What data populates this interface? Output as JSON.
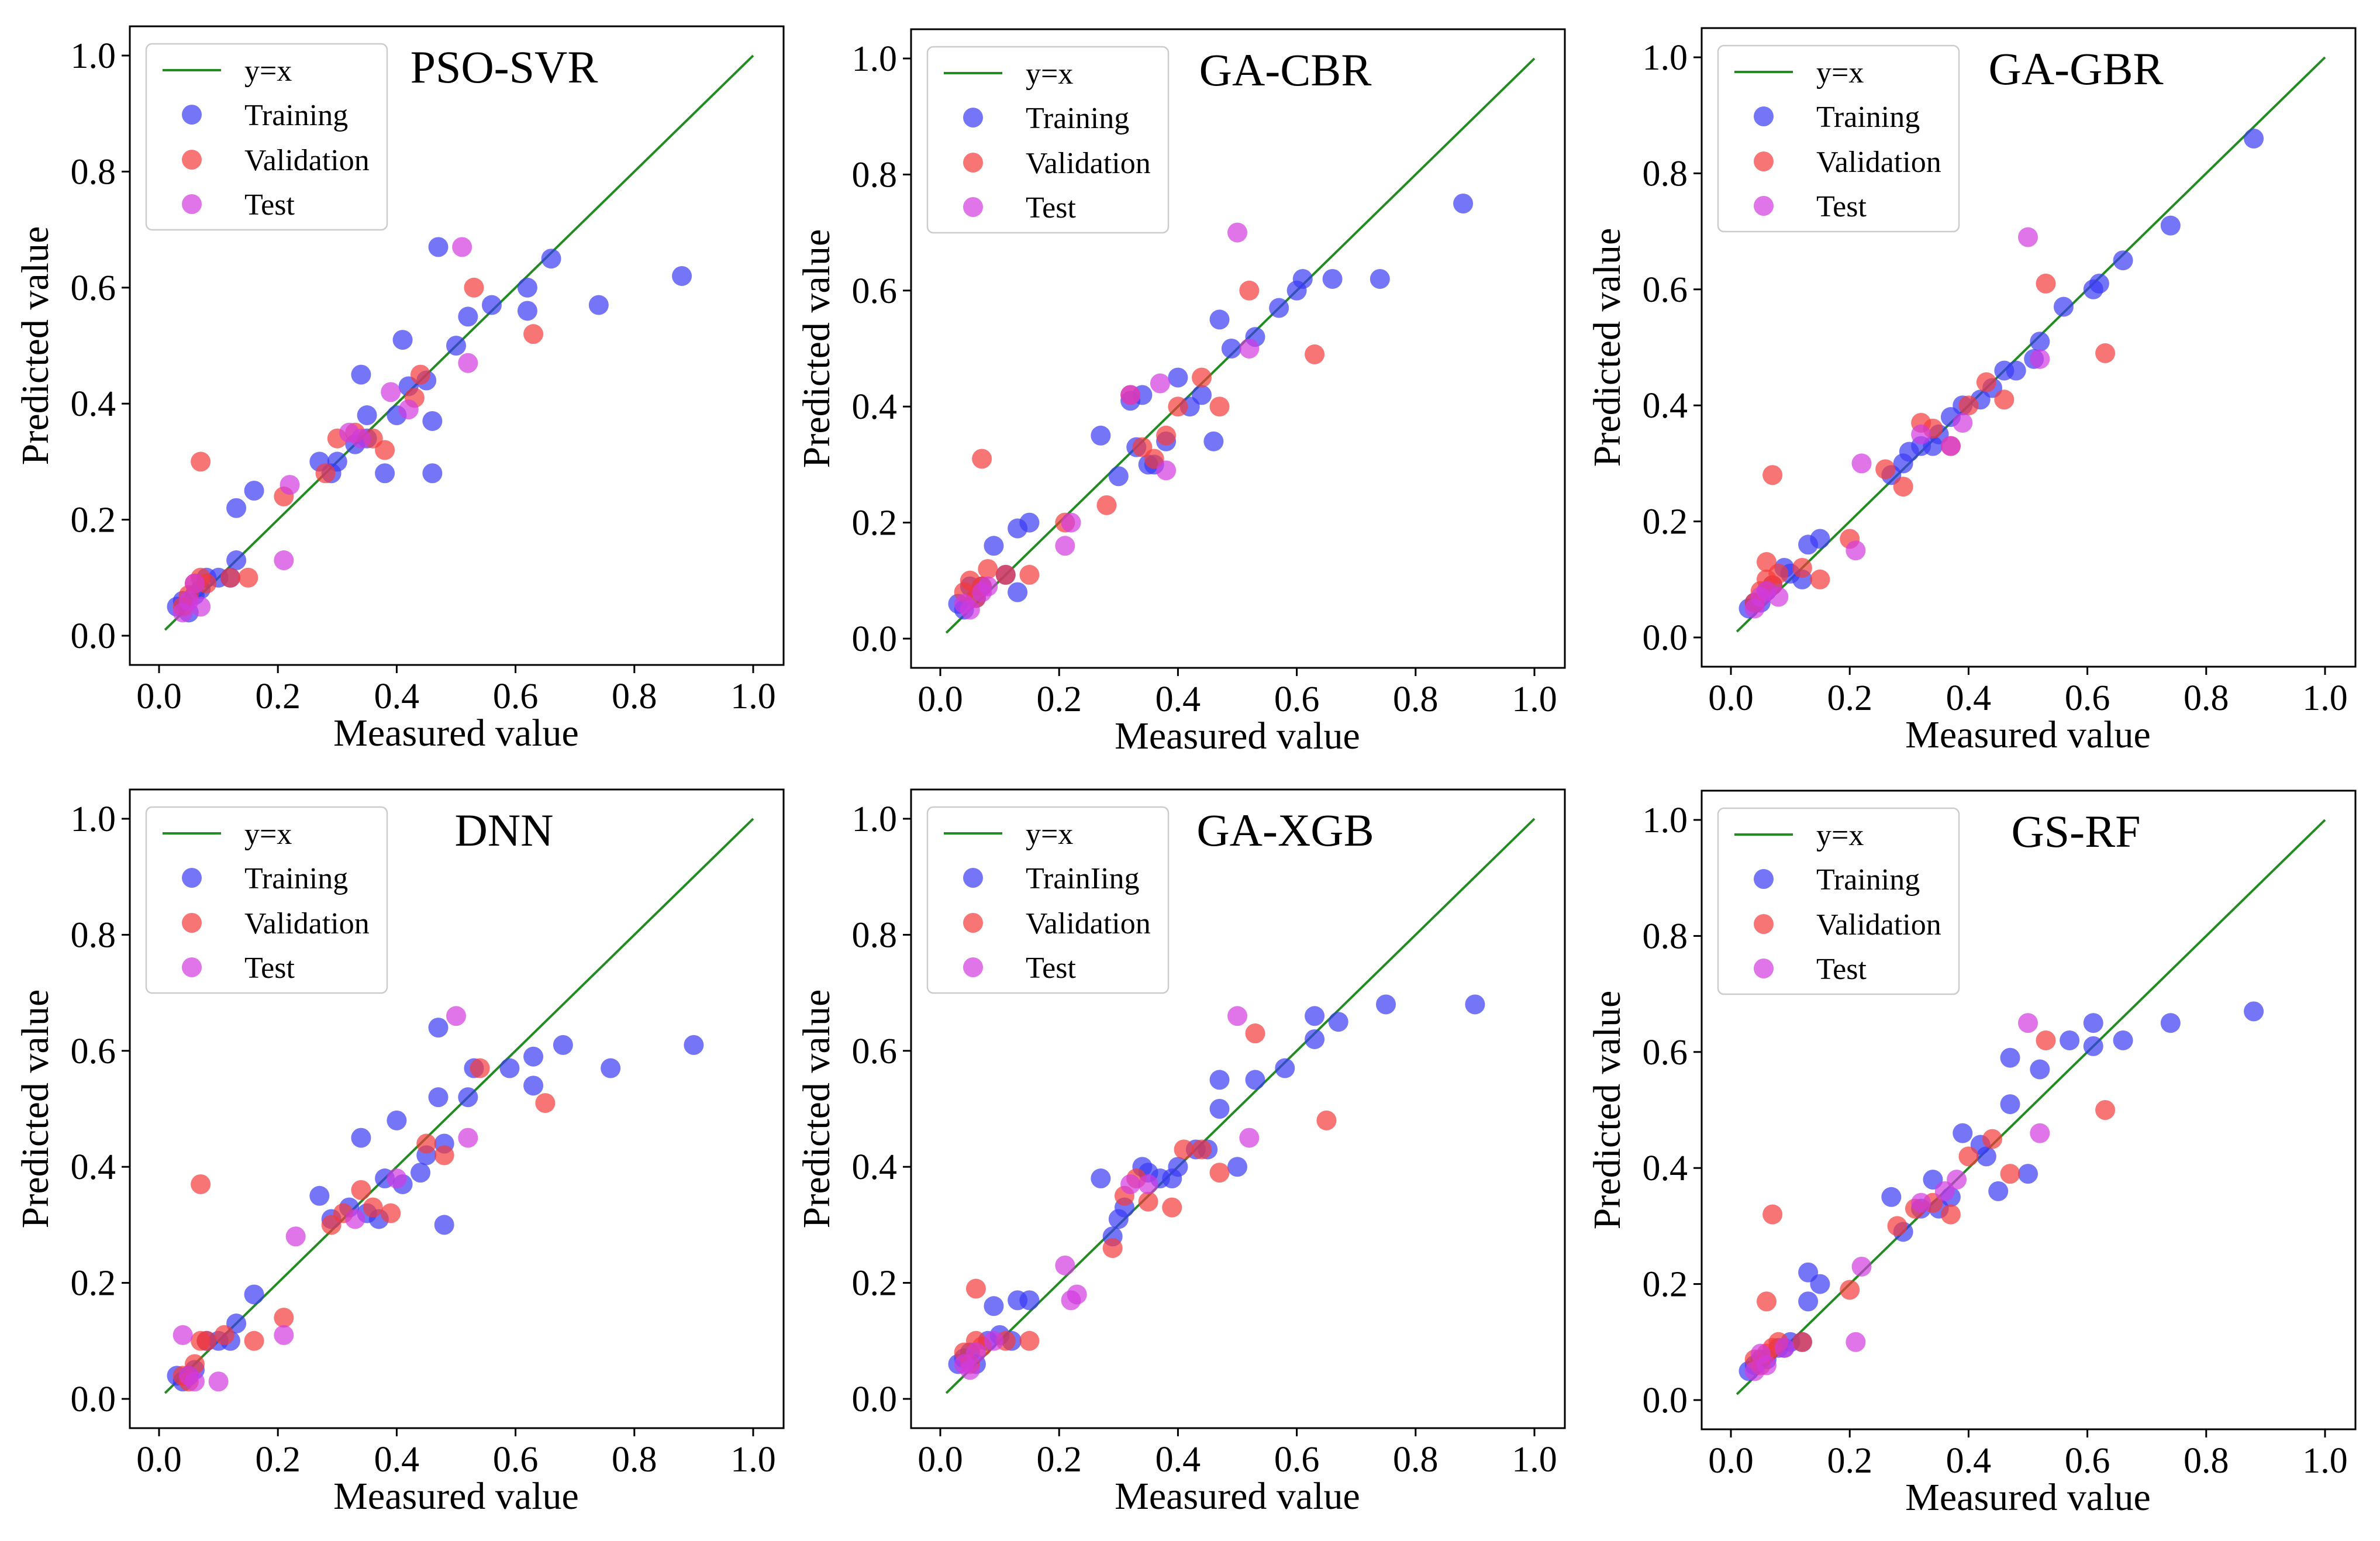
{
  "chart_data": [
    {
      "type": "scatter",
      "title": "PSO-SVR",
      "xlabel": "Measured value",
      "ylabel": "Predicted value",
      "xlim": [
        0.0,
        1.0
      ],
      "ylim": [
        0.0,
        1.0
      ],
      "ticks": [
        "0.0",
        "0.2",
        "0.4",
        "0.6",
        "0.8",
        "1.0"
      ],
      "legend": [
        "y=x",
        "Training",
        "Validation",
        "Test"
      ],
      "series": [
        {
          "name": "Training",
          "x": [
            0.03,
            0.04,
            0.05,
            0.06,
            0.07,
            0.08,
            0.1,
            0.12,
            0.13,
            0.13,
            0.16,
            0.27,
            0.29,
            0.3,
            0.33,
            0.34,
            0.35,
            0.35,
            0.38,
            0.4,
            0.41,
            0.42,
            0.45,
            0.46,
            0.46,
            0.47,
            0.5,
            0.52,
            0.56,
            0.62,
            0.62,
            0.66,
            0.74,
            0.88
          ],
          "y": [
            0.05,
            0.06,
            0.04,
            0.07,
            0.08,
            0.1,
            0.1,
            0.1,
            0.13,
            0.22,
            0.25,
            0.3,
            0.28,
            0.3,
            0.33,
            0.45,
            0.34,
            0.38,
            0.28,
            0.38,
            0.51,
            0.43,
            0.44,
            0.37,
            0.28,
            0.67,
            0.5,
            0.55,
            0.57,
            0.56,
            0.6,
            0.65,
            0.57,
            0.62
          ]
        },
        {
          "name": "Validation",
          "x": [
            0.04,
            0.05,
            0.06,
            0.07,
            0.08,
            0.12,
            0.15,
            0.21,
            0.28,
            0.3,
            0.33,
            0.36,
            0.38,
            0.43,
            0.44,
            0.53,
            0.63,
            0.07
          ],
          "y": [
            0.05,
            0.07,
            0.09,
            0.1,
            0.09,
            0.1,
            0.1,
            0.24,
            0.28,
            0.34,
            0.35,
            0.34,
            0.32,
            0.41,
            0.45,
            0.6,
            0.52,
            0.3
          ]
        },
        {
          "name": "Test",
          "x": [
            0.04,
            0.05,
            0.06,
            0.07,
            0.22,
            0.21,
            0.32,
            0.34,
            0.39,
            0.42,
            0.52,
            0.51
          ],
          "y": [
            0.04,
            0.06,
            0.09,
            0.05,
            0.26,
            0.13,
            0.35,
            0.34,
            0.42,
            0.39,
            0.47,
            0.67
          ]
        }
      ]
    },
    {
      "type": "scatter",
      "title": "GA-CBR",
      "xlabel": "Measured value",
      "ylabel": "Predicted value",
      "xlim": [
        0.0,
        1.0
      ],
      "ylim": [
        0.0,
        1.0
      ],
      "ticks": [
        "0.0",
        "0.2",
        "0.4",
        "0.6",
        "0.8",
        "1.0"
      ],
      "legend": [
        "y=x",
        "Training",
        "Validation",
        "Test"
      ],
      "series": [
        {
          "name": "Training",
          "x": [
            0.03,
            0.04,
            0.05,
            0.06,
            0.07,
            0.09,
            0.11,
            0.13,
            0.13,
            0.15,
            0.27,
            0.3,
            0.32,
            0.33,
            0.34,
            0.35,
            0.36,
            0.38,
            0.4,
            0.42,
            0.44,
            0.46,
            0.47,
            0.49,
            0.53,
            0.57,
            0.6,
            0.61,
            0.66,
            0.74,
            0.88
          ],
          "y": [
            0.06,
            0.05,
            0.09,
            0.07,
            0.09,
            0.16,
            0.11,
            0.08,
            0.19,
            0.2,
            0.35,
            0.28,
            0.41,
            0.33,
            0.42,
            0.3,
            0.3,
            0.34,
            0.45,
            0.4,
            0.42,
            0.34,
            0.55,
            0.5,
            0.52,
            0.57,
            0.6,
            0.62,
            0.62,
            0.62,
            0.75
          ]
        },
        {
          "name": "Validation",
          "x": [
            0.04,
            0.05,
            0.06,
            0.07,
            0.08,
            0.11,
            0.15,
            0.21,
            0.28,
            0.32,
            0.34,
            0.36,
            0.38,
            0.4,
            0.44,
            0.47,
            0.52,
            0.63,
            0.07
          ],
          "y": [
            0.08,
            0.1,
            0.07,
            0.09,
            0.12,
            0.11,
            0.11,
            0.2,
            0.23,
            0.42,
            0.33,
            0.31,
            0.35,
            0.4,
            0.45,
            0.4,
            0.6,
            0.49,
            0.31
          ]
        },
        {
          "name": "Test",
          "x": [
            0.04,
            0.05,
            0.07,
            0.08,
            0.21,
            0.22,
            0.32,
            0.37,
            0.38,
            0.5,
            0.52
          ],
          "y": [
            0.06,
            0.05,
            0.08,
            0.09,
            0.16,
            0.2,
            0.42,
            0.44,
            0.29,
            0.7,
            0.5
          ]
        }
      ]
    },
    {
      "type": "scatter",
      "title": "GA-GBR",
      "xlabel": "Measured value",
      "ylabel": "Predicted value",
      "xlim": [
        0.0,
        1.0
      ],
      "ylim": [
        0.0,
        1.0
      ],
      "ticks": [
        "0.0",
        "0.2",
        "0.4",
        "0.6",
        "0.8",
        "1.0"
      ],
      "legend": [
        "y=x",
        "Training",
        "Validation",
        "Test"
      ],
      "series": [
        {
          "name": "Training",
          "x": [
            0.03,
            0.04,
            0.05,
            0.06,
            0.07,
            0.09,
            0.1,
            0.12,
            0.13,
            0.15,
            0.27,
            0.29,
            0.3,
            0.32,
            0.34,
            0.35,
            0.37,
            0.39,
            0.42,
            0.44,
            0.46,
            0.48,
            0.51,
            0.52,
            0.56,
            0.61,
            0.62,
            0.66,
            0.74,
            0.88
          ],
          "y": [
            0.05,
            0.06,
            0.06,
            0.08,
            0.09,
            0.12,
            0.11,
            0.1,
            0.16,
            0.17,
            0.28,
            0.3,
            0.32,
            0.33,
            0.33,
            0.35,
            0.38,
            0.4,
            0.41,
            0.43,
            0.46,
            0.46,
            0.48,
            0.51,
            0.57,
            0.6,
            0.61,
            0.65,
            0.71,
            0.86
          ]
        },
        {
          "name": "Validation",
          "x": [
            0.04,
            0.05,
            0.06,
            0.07,
            0.08,
            0.12,
            0.15,
            0.2,
            0.26,
            0.29,
            0.32,
            0.34,
            0.37,
            0.4,
            0.43,
            0.46,
            0.53,
            0.63,
            0.07,
            0.06
          ],
          "y": [
            0.06,
            0.08,
            0.1,
            0.09,
            0.11,
            0.12,
            0.1,
            0.17,
            0.29,
            0.26,
            0.37,
            0.36,
            0.33,
            0.4,
            0.44,
            0.41,
            0.61,
            0.49,
            0.28,
            0.13
          ]
        },
        {
          "name": "Test",
          "x": [
            0.04,
            0.05,
            0.06,
            0.08,
            0.21,
            0.22,
            0.32,
            0.37,
            0.39,
            0.5,
            0.52
          ],
          "y": [
            0.05,
            0.07,
            0.08,
            0.07,
            0.15,
            0.3,
            0.35,
            0.33,
            0.37,
            0.69,
            0.48
          ]
        }
      ]
    },
    {
      "type": "scatter",
      "title": "DNN",
      "xlabel": "Measured value",
      "ylabel": "Predicted value",
      "xlim": [
        0.0,
        1.0
      ],
      "ylim": [
        0.0,
        1.0
      ],
      "ticks": [
        "0.0",
        "0.2",
        "0.4",
        "0.6",
        "0.8",
        "1.0"
      ],
      "legend": [
        "y=x",
        "Training",
        "Validation",
        "Test"
      ],
      "series": [
        {
          "name": "Training",
          "x": [
            0.03,
            0.04,
            0.05,
            0.06,
            0.08,
            0.1,
            0.12,
            0.13,
            0.16,
            0.27,
            0.29,
            0.32,
            0.34,
            0.35,
            0.37,
            0.38,
            0.4,
            0.41,
            0.44,
            0.45,
            0.47,
            0.47,
            0.48,
            0.48,
            0.52,
            0.53,
            0.59,
            0.63,
            0.63,
            0.68,
            0.76,
            0.9
          ],
          "y": [
            0.04,
            0.03,
            0.04,
            0.05,
            0.1,
            0.1,
            0.1,
            0.13,
            0.18,
            0.35,
            0.31,
            0.33,
            0.45,
            0.32,
            0.31,
            0.38,
            0.48,
            0.37,
            0.39,
            0.42,
            0.52,
            0.64,
            0.3,
            0.44,
            0.52,
            0.57,
            0.57,
            0.59,
            0.54,
            0.61,
            0.57,
            0.61
          ]
        },
        {
          "name": "Validation",
          "x": [
            0.04,
            0.05,
            0.06,
            0.07,
            0.08,
            0.11,
            0.16,
            0.21,
            0.29,
            0.31,
            0.34,
            0.36,
            0.39,
            0.45,
            0.48,
            0.54,
            0.65,
            0.07
          ],
          "y": [
            0.04,
            0.03,
            0.06,
            0.1,
            0.1,
            0.11,
            0.1,
            0.14,
            0.3,
            0.32,
            0.36,
            0.33,
            0.32,
            0.44,
            0.42,
            0.57,
            0.51,
            0.37
          ]
        },
        {
          "name": "Test",
          "x": [
            0.04,
            0.05,
            0.06,
            0.1,
            0.21,
            0.23,
            0.33,
            0.4,
            0.52,
            0.5
          ],
          "y": [
            0.11,
            0.04,
            0.03,
            0.03,
            0.11,
            0.28,
            0.31,
            0.38,
            0.45,
            0.66
          ]
        }
      ]
    },
    {
      "type": "scatter",
      "title": "GA-XGB",
      "xlabel": "Measured value",
      "ylabel": "Predicted value",
      "xlim": [
        0.0,
        1.0
      ],
      "ylim": [
        0.0,
        1.0
      ],
      "ticks": [
        "0.0",
        "0.2",
        "0.4",
        "0.6",
        "0.8",
        "1.0"
      ],
      "legend": [
        "y=x",
        "TrainIing",
        "Validation",
        "Test"
      ],
      "series": [
        {
          "name": "TrainIing",
          "x": [
            0.03,
            0.04,
            0.05,
            0.06,
            0.08,
            0.09,
            0.1,
            0.12,
            0.13,
            0.15,
            0.27,
            0.29,
            0.3,
            0.31,
            0.34,
            0.35,
            0.37,
            0.39,
            0.4,
            0.43,
            0.45,
            0.47,
            0.47,
            0.5,
            0.53,
            0.58,
            0.63,
            0.63,
            0.67,
            0.75,
            0.9
          ],
          "y": [
            0.06,
            0.07,
            0.08,
            0.06,
            0.1,
            0.16,
            0.11,
            0.1,
            0.17,
            0.17,
            0.38,
            0.28,
            0.31,
            0.33,
            0.4,
            0.39,
            0.38,
            0.38,
            0.4,
            0.43,
            0.43,
            0.5,
            0.55,
            0.4,
            0.55,
            0.57,
            0.62,
            0.66,
            0.65,
            0.68,
            0.68
          ]
        },
        {
          "name": "Validation",
          "x": [
            0.04,
            0.05,
            0.06,
            0.07,
            0.11,
            0.15,
            0.29,
            0.31,
            0.33,
            0.35,
            0.39,
            0.41,
            0.44,
            0.47,
            0.53,
            0.65,
            0.06
          ],
          "y": [
            0.08,
            0.06,
            0.1,
            0.09,
            0.1,
            0.1,
            0.26,
            0.35,
            0.38,
            0.34,
            0.33,
            0.43,
            0.43,
            0.39,
            0.63,
            0.48,
            0.19
          ]
        },
        {
          "name": "Test",
          "x": [
            0.04,
            0.05,
            0.06,
            0.09,
            0.21,
            0.22,
            0.23,
            0.32,
            0.35,
            0.52,
            0.5
          ],
          "y": [
            0.06,
            0.05,
            0.08,
            0.1,
            0.23,
            0.17,
            0.18,
            0.37,
            0.37,
            0.45,
            0.66
          ]
        }
      ]
    },
    {
      "type": "scatter",
      "title": "GS-RF",
      "xlabel": "Measured value",
      "ylabel": "Predicted value",
      "xlim": [
        0.0,
        1.0
      ],
      "ylim": [
        0.0,
        1.0
      ],
      "ticks": [
        "0.0",
        "0.2",
        "0.4",
        "0.6",
        "0.8",
        "1.0"
      ],
      "legend": [
        "y=x",
        "Training",
        "Validation",
        "Test"
      ],
      "series": [
        {
          "name": "Training",
          "x": [
            0.03,
            0.04,
            0.05,
            0.06,
            0.08,
            0.09,
            0.1,
            0.12,
            0.13,
            0.13,
            0.15,
            0.27,
            0.29,
            0.32,
            0.34,
            0.35,
            0.37,
            0.39,
            0.42,
            0.43,
            0.45,
            0.47,
            0.47,
            0.5,
            0.52,
            0.57,
            0.61,
            0.61,
            0.66,
            0.74,
            0.88
          ],
          "y": [
            0.05,
            0.06,
            0.07,
            0.07,
            0.09,
            0.09,
            0.1,
            0.1,
            0.17,
            0.22,
            0.2,
            0.35,
            0.29,
            0.33,
            0.38,
            0.33,
            0.35,
            0.46,
            0.44,
            0.42,
            0.36,
            0.51,
            0.59,
            0.39,
            0.57,
            0.62,
            0.61,
            0.65,
            0.62,
            0.65,
            0.67
          ]
        },
        {
          "name": "Validation",
          "x": [
            0.04,
            0.05,
            0.06,
            0.07,
            0.08,
            0.12,
            0.2,
            0.28,
            0.31,
            0.34,
            0.37,
            0.4,
            0.44,
            0.47,
            0.53,
            0.63,
            0.07,
            0.06
          ],
          "y": [
            0.07,
            0.06,
            0.08,
            0.09,
            0.1,
            0.1,
            0.19,
            0.3,
            0.33,
            0.34,
            0.32,
            0.42,
            0.45,
            0.39,
            0.62,
            0.5,
            0.32,
            0.17
          ]
        },
        {
          "name": "Test",
          "x": [
            0.04,
            0.05,
            0.06,
            0.09,
            0.21,
            0.22,
            0.32,
            0.36,
            0.38,
            0.52,
            0.5
          ],
          "y": [
            0.05,
            0.08,
            0.06,
            0.09,
            0.1,
            0.23,
            0.34,
            0.36,
            0.38,
            0.46,
            0.65
          ]
        }
      ]
    }
  ],
  "colors": {
    "identity_line": "#228b22",
    "training": "#3b3bf5",
    "validation": "#f53b3b",
    "test": "#d23be0",
    "axes": "#000000"
  }
}
